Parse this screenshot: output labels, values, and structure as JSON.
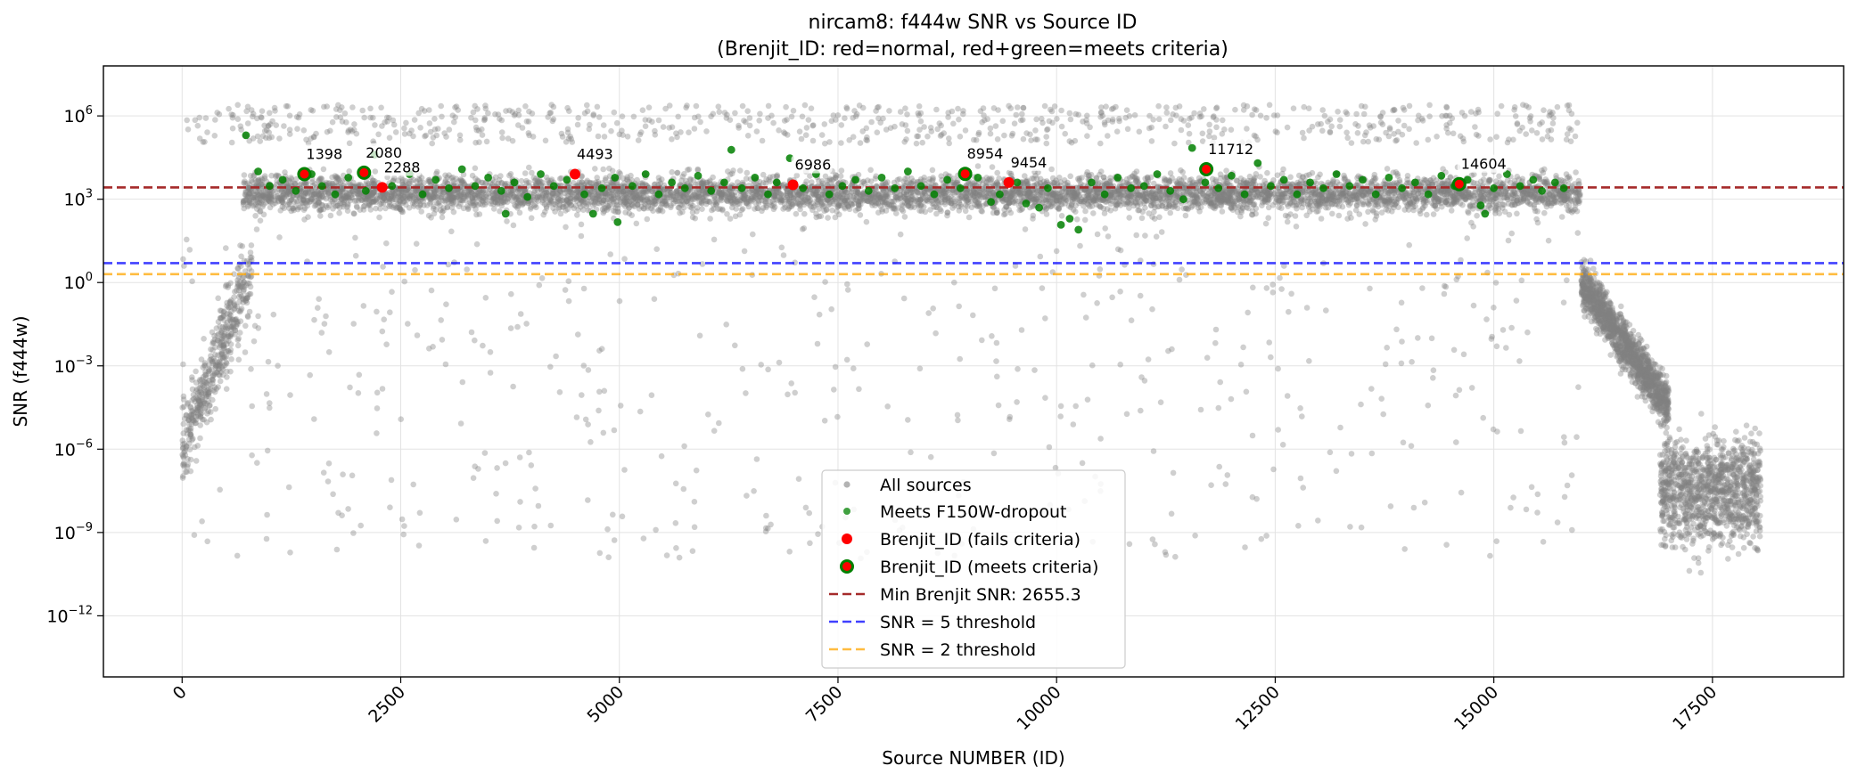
{
  "chart_data": {
    "type": "scatter",
    "title": "nircam8: f444w SNR vs Source ID",
    "subtitle": "(Brenjit_ID: red=normal, red+green=meets criteria)",
    "xlabel": "Source NUMBER (ID)",
    "ylabel": "SNR (f444w)",
    "xlim": [
      -900,
      19000
    ],
    "ylim_log10": [
      -14.2,
      7.8
    ],
    "y_scale": "log",
    "x_ticks": [
      0,
      2500,
      5000,
      7500,
      10000,
      12500,
      15000,
      17500
    ],
    "x_tick_labels": [
      "0",
      "2500",
      "5000",
      "7500",
      "10000",
      "12500",
      "15000",
      "17500"
    ],
    "y_ticks_exp": [
      6,
      3,
      0,
      -3,
      -6,
      -9,
      -12
    ],
    "grid": true,
    "legend_position": "lower-center",
    "colors": {
      "all_sources": "#808080",
      "dropout": "#008000",
      "brenjit": "#ff0000",
      "min_line": "#a52a2a",
      "snr5_line": "#0000ff",
      "snr2_line": "#ffa500"
    },
    "legend": [
      "All sources",
      "Meets F150W-dropout",
      "Brenjit_ID (fails criteria)",
      "Brenjit_ID (meets criteria)",
      "Min Brenjit SNR: 2655.3",
      "SNR = 5 threshold",
      "SNR = 2 threshold"
    ],
    "hlines": [
      {
        "label": "Min Brenjit SNR: 2655.3",
        "y": 2655.3
      },
      {
        "label": "SNR = 5 threshold",
        "y": 5
      },
      {
        "label": "SNR = 2 threshold",
        "y": 2
      }
    ],
    "brenjit_points": [
      {
        "id": "1398",
        "x": 1398,
        "y": 8000,
        "meets": true
      },
      {
        "id": "2080",
        "x": 2080,
        "y": 9000,
        "meets": true
      },
      {
        "id": "2288",
        "x": 2288,
        "y": 2655.3,
        "meets": false
      },
      {
        "id": "4493",
        "x": 4493,
        "y": 8000,
        "meets": false
      },
      {
        "id": "6986",
        "x": 6986,
        "y": 3300,
        "meets": false
      },
      {
        "id": "8954",
        "x": 8954,
        "y": 8200,
        "meets": true
      },
      {
        "id": "9454",
        "x": 9454,
        "y": 4000,
        "meets": false
      },
      {
        "id": "11712",
        "x": 11712,
        "y": 12000,
        "meets": true
      },
      {
        "id": "14604",
        "x": 14604,
        "y": 3500,
        "meets": true
      }
    ],
    "dropout_points": [
      [
        730,
        200000
      ],
      [
        870,
        10000
      ],
      [
        1000,
        3000
      ],
      [
        1150,
        5000
      ],
      [
        1300,
        2000
      ],
      [
        1480,
        8000
      ],
      [
        1600,
        3000
      ],
      [
        1750,
        1500
      ],
      [
        1900,
        6000
      ],
      [
        2100,
        2000
      ],
      [
        2200,
        40000
      ],
      [
        2400,
        3000
      ],
      [
        2600,
        8000
      ],
      [
        2750,
        1500
      ],
      [
        2900,
        5000
      ],
      [
        3050,
        2500
      ],
      [
        3200,
        12000
      ],
      [
        3350,
        3000
      ],
      [
        3500,
        6000
      ],
      [
        3650,
        2000
      ],
      [
        3700,
        300
      ],
      [
        3800,
        4000
      ],
      [
        3950,
        1200
      ],
      [
        4100,
        8000
      ],
      [
        4250,
        3000
      ],
      [
        4400,
        5000
      ],
      [
        4600,
        1500
      ],
      [
        4700,
        300
      ],
      [
        4800,
        2500
      ],
      [
        4950,
        6000
      ],
      [
        4980,
        150
      ],
      [
        5150,
        3000
      ],
      [
        5300,
        8000
      ],
      [
        5450,
        1500
      ],
      [
        5600,
        4000
      ],
      [
        5750,
        2500
      ],
      [
        5900,
        7000
      ],
      [
        6050,
        2000
      ],
      [
        6200,
        4000
      ],
      [
        6280,
        60000
      ],
      [
        6400,
        2500
      ],
      [
        6550,
        6000
      ],
      [
        6700,
        1500
      ],
      [
        6800,
        4000
      ],
      [
        6950,
        30000
      ],
      [
        7100,
        2500
      ],
      [
        7250,
        8000
      ],
      [
        7400,
        1500
      ],
      [
        7550,
        3000
      ],
      [
        7700,
        5000
      ],
      [
        7850,
        2000
      ],
      [
        8000,
        6000
      ],
      [
        8150,
        2500
      ],
      [
        8300,
        10000
      ],
      [
        8450,
        3000
      ],
      [
        8600,
        1500
      ],
      [
        8750,
        5000
      ],
      [
        8900,
        2500
      ],
      [
        9100,
        6000
      ],
      [
        9250,
        800
      ],
      [
        9350,
        1500
      ],
      [
        9550,
        4000
      ],
      [
        9650,
        700
      ],
      [
        9800,
        500
      ],
      [
        9900,
        2500
      ],
      [
        10050,
        120
      ],
      [
        10150,
        200
      ],
      [
        10250,
        80
      ],
      [
        10400,
        4000
      ],
      [
        10550,
        1500
      ],
      [
        10700,
        6000
      ],
      [
        10850,
        2500
      ],
      [
        11000,
        3000
      ],
      [
        11150,
        8000
      ],
      [
        11300,
        2000
      ],
      [
        11450,
        1000
      ],
      [
        11550,
        70000
      ],
      [
        11700,
        4000
      ],
      [
        11850,
        2500
      ],
      [
        12000,
        7000
      ],
      [
        12150,
        1500
      ],
      [
        12300,
        20000
      ],
      [
        12450,
        3000
      ],
      [
        12600,
        5000
      ],
      [
        12750,
        1500
      ],
      [
        12900,
        4000
      ],
      [
        13050,
        2500
      ],
      [
        13200,
        8000
      ],
      [
        13350,
        3000
      ],
      [
        13500,
        5000
      ],
      [
        13650,
        1500
      ],
      [
        13800,
        6000
      ],
      [
        13950,
        2500
      ],
      [
        14100,
        4000
      ],
      [
        14250,
        1500
      ],
      [
        14400,
        7000
      ],
      [
        14550,
        3000
      ],
      [
        14700,
        5000
      ],
      [
        14850,
        600
      ],
      [
        14900,
        300
      ],
      [
        15000,
        2500
      ],
      [
        15150,
        8000
      ],
      [
        15300,
        3000
      ],
      [
        15450,
        5000
      ],
      [
        15550,
        2000
      ],
      [
        15700,
        4000
      ],
      [
        15800,
        2500
      ]
    ]
  }
}
